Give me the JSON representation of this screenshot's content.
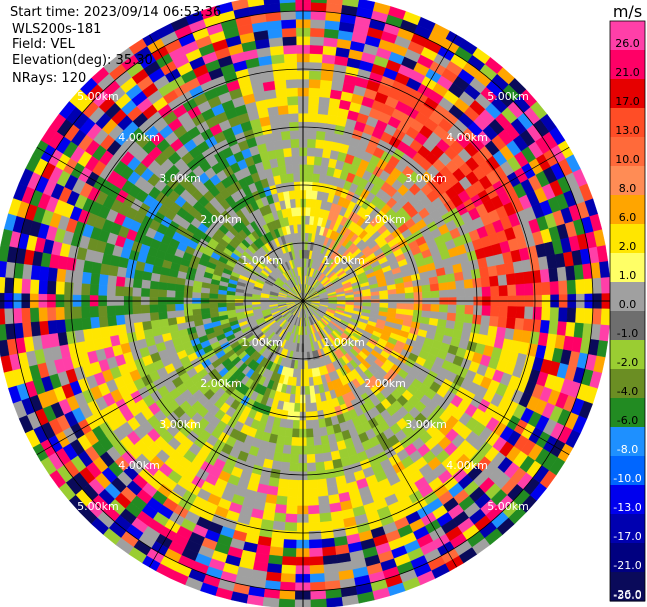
{
  "header": {
    "start_time": "Start time: 2023/09/14 06:53:36",
    "site": "WLS200s-181",
    "field": "Field: VEL",
    "elevation": "Elevation(deg): 35.30",
    "nrays": "NRays: 120"
  },
  "chart_data": {
    "type": "heatmap",
    "projection": "polar-ppi",
    "field": "VEL",
    "units": "m/s",
    "elevation_deg": 35.3,
    "n_rays": 120,
    "range_rings_km": [
      1,
      2,
      3,
      4,
      5
    ],
    "range_labels": [
      "1.00km",
      "2.00km",
      "3.00km",
      "4.00km",
      "5.00km"
    ],
    "max_range_km": 5.3,
    "colorbar": {
      "unit": "m/s",
      "ticks": [
        26.0,
        21.0,
        17.0,
        13.0,
        10.0,
        8.0,
        6.0,
        2.0,
        1.0,
        0.0,
        -1.0,
        -2.0,
        -4.0,
        -6.0,
        -8.0,
        -10.0,
        -13.0,
        -17.0,
        -21.0,
        -26.0,
        -30.0
      ],
      "tick_labels": [
        "26.0",
        "21.0",
        "17.0",
        "13.0",
        "10.0",
        "8.0",
        "6.0",
        "2.0",
        "1.0",
        "0.0",
        "-1.0",
        "-2.0",
        "-4.0",
        "-6.0",
        "-8.0",
        "-10.0",
        "-13.0",
        "-17.0",
        "-21.0",
        "-26.0",
        "-30.0"
      ],
      "colors": [
        "#ff3fa8",
        "#ff0066",
        "#e60000",
        "#ff4d26",
        "#ff6a3a",
        "#ff8c55",
        "#ffa500",
        "#ffe600",
        "#ffff66",
        "#a0a0a0",
        "#6e6e6e",
        "#9acd32",
        "#6b8e23",
        "#228b22",
        "#1e90ff",
        "#0066ff",
        "#0000ee",
        "#0000b0",
        "#000080",
        "#0a0a5a"
      ]
    },
    "pattern": {
      "inner_gray_radius_km": 1.15,
      "yellow_ring_km": [
        1.2,
        2.1
      ],
      "green_ring_km": [
        2.1,
        3.1
      ],
      "yellow_outer_south_km": [
        3.0,
        4.1
      ],
      "noisy_beyond_km": 4.0
    }
  }
}
